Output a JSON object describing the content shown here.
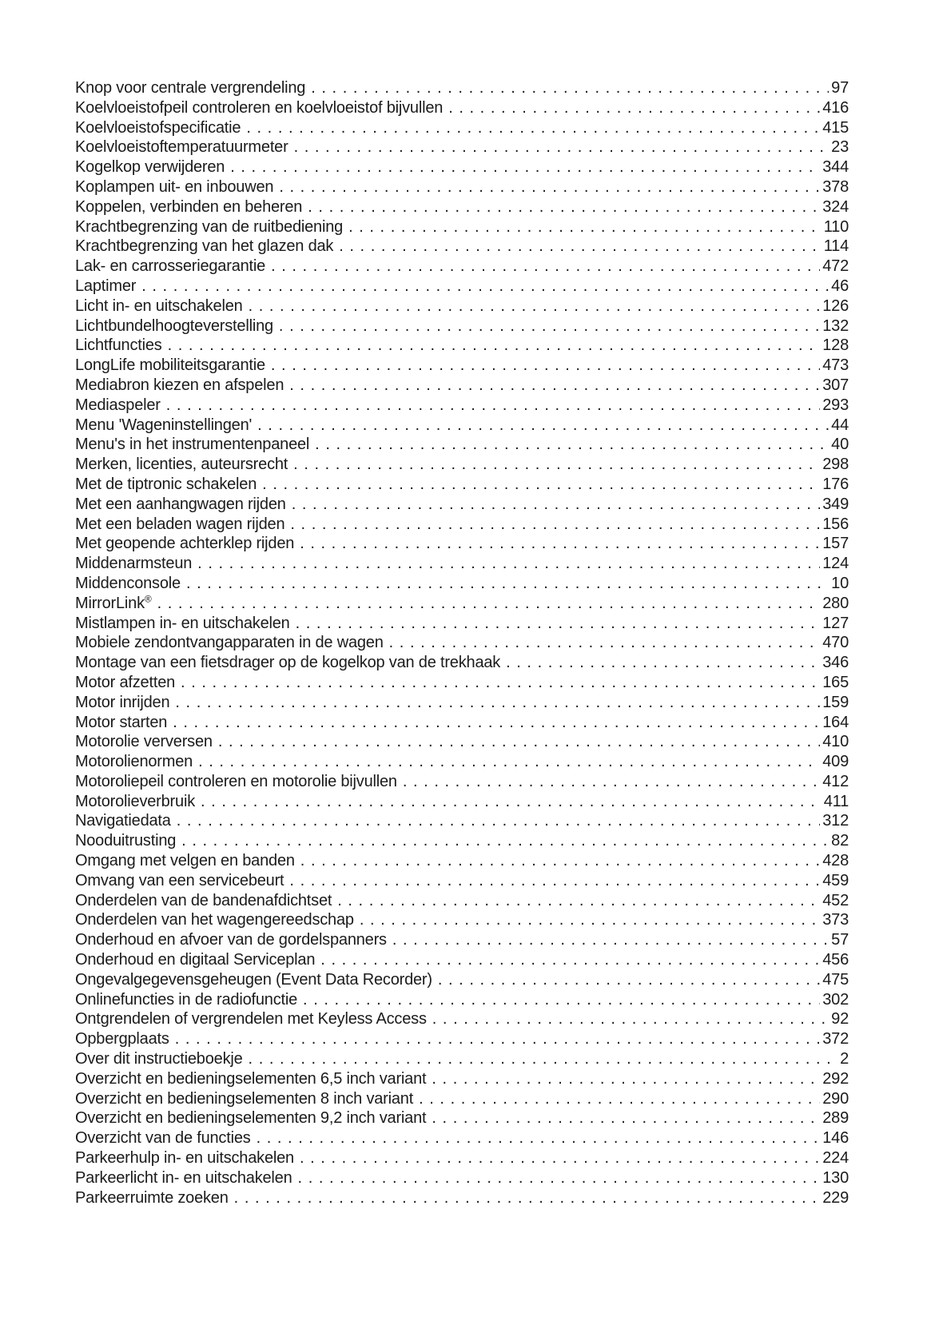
{
  "page": {
    "background_color": "#ffffff",
    "text_color": "#1b1b1b",
    "language": "nl",
    "kind": "manual-index-page"
  },
  "index": {
    "entries": [
      {
        "title": "Knop voor centrale vergrendeling",
        "page": "97"
      },
      {
        "title": "Koelvloeistofpeil controleren en koelvloeistof bijvullen",
        "page": "416"
      },
      {
        "title": "Koelvloeistofspecificatie",
        "page": "415"
      },
      {
        "title": "Koelvloeistoftemperatuurmeter",
        "page": "23"
      },
      {
        "title": "Kogelkop verwijderen",
        "page": "344"
      },
      {
        "title": "Koplampen uit- en inbouwen",
        "page": "378"
      },
      {
        "title": "Koppelen, verbinden en beheren",
        "page": "324"
      },
      {
        "title": "Krachtbegrenzing van de ruitbediening",
        "page": "110"
      },
      {
        "title": "Krachtbegrenzing van het glazen dak",
        "page": "114"
      },
      {
        "title": "Lak- en carrosseriegarantie",
        "page": "472"
      },
      {
        "title": "Laptimer",
        "page": "46"
      },
      {
        "title": "Licht in- en uitschakelen",
        "page": "126"
      },
      {
        "title": "Lichtbundelhoogteverstelling",
        "page": "132"
      },
      {
        "title": "Lichtfuncties",
        "page": "128"
      },
      {
        "title": "LongLife mobiliteitsgarantie",
        "page": "473"
      },
      {
        "title": "Mediabron kiezen en afspelen",
        "page": "307"
      },
      {
        "title": "Mediaspeler",
        "page": "293"
      },
      {
        "title": "Menu 'Wageninstellingen'",
        "page": "44"
      },
      {
        "title": "Menu's in het instrumentenpaneel",
        "page": "40"
      },
      {
        "title": "Merken, licenties, auteursrecht",
        "page": "298"
      },
      {
        "title": "Met de tiptronic schakelen",
        "page": "176"
      },
      {
        "title": "Met een aanhangwagen rijden",
        "page": "349"
      },
      {
        "title": "Met een beladen wagen rijden",
        "page": "156"
      },
      {
        "title": "Met geopende achterklep rijden",
        "page": "157"
      },
      {
        "title": "Middenarmsteun",
        "page": "124"
      },
      {
        "title": "Middenconsole",
        "page": "10"
      },
      {
        "title": "MirrorLink®",
        "page": "280"
      },
      {
        "title": "Mistlampen in- en uitschakelen",
        "page": "127"
      },
      {
        "title": "Mobiele zendontvangapparaten in de wagen",
        "page": "470"
      },
      {
        "title": "Montage van een fietsdrager op de kogelkop van de trekhaak",
        "page": "346"
      },
      {
        "title": "Motor afzetten",
        "page": "165"
      },
      {
        "title": "Motor inrijden",
        "page": "159"
      },
      {
        "title": "Motor starten",
        "page": "164"
      },
      {
        "title": "Motorolie verversen",
        "page": "410"
      },
      {
        "title": "Motorolienormen",
        "page": "409"
      },
      {
        "title": "Motoroliepeil controleren en motorolie bijvullen",
        "page": "412"
      },
      {
        "title": "Motorolieverbruik",
        "page": "411"
      },
      {
        "title": "Navigatiedata",
        "page": "312"
      },
      {
        "title": "Nooduitrusting",
        "page": "82"
      },
      {
        "title": "Omgang met velgen en banden",
        "page": "428"
      },
      {
        "title": "Omvang van een servicebeurt",
        "page": "459"
      },
      {
        "title": "Onderdelen van de bandenafdichtset",
        "page": "452"
      },
      {
        "title": "Onderdelen van het wagengereedschap",
        "page": "373"
      },
      {
        "title": "Onderhoud en afvoer van de gordelspanners",
        "page": "57"
      },
      {
        "title": "Onderhoud en digitaal Serviceplan",
        "page": "456"
      },
      {
        "title": "Ongevalgegevensgeheugen (Event Data Recorder)",
        "page": "475"
      },
      {
        "title": "Onlinefuncties in de radiofunctie",
        "page": "302"
      },
      {
        "title": "Ontgrendelen of vergrendelen met Keyless Access",
        "page": "92"
      },
      {
        "title": "Opbergplaats",
        "page": "372"
      },
      {
        "title": "Over dit instructieboekje",
        "page": "2"
      },
      {
        "title": "Overzicht en bedieningselementen 6,5 inch variant",
        "page": "292"
      },
      {
        "title": "Overzicht en bedieningselementen 8 inch variant",
        "page": "290"
      },
      {
        "title": "Overzicht en bedieningselementen 9,2 inch variant",
        "page": "289"
      },
      {
        "title": "Overzicht van de functies",
        "page": "146"
      },
      {
        "title": "Parkeerhulp in- en uitschakelen",
        "page": "224"
      },
      {
        "title": "Parkeerlicht in- en uitschakelen",
        "page": "130"
      },
      {
        "title": "Parkeerruimte zoeken",
        "page": "229"
      }
    ]
  }
}
